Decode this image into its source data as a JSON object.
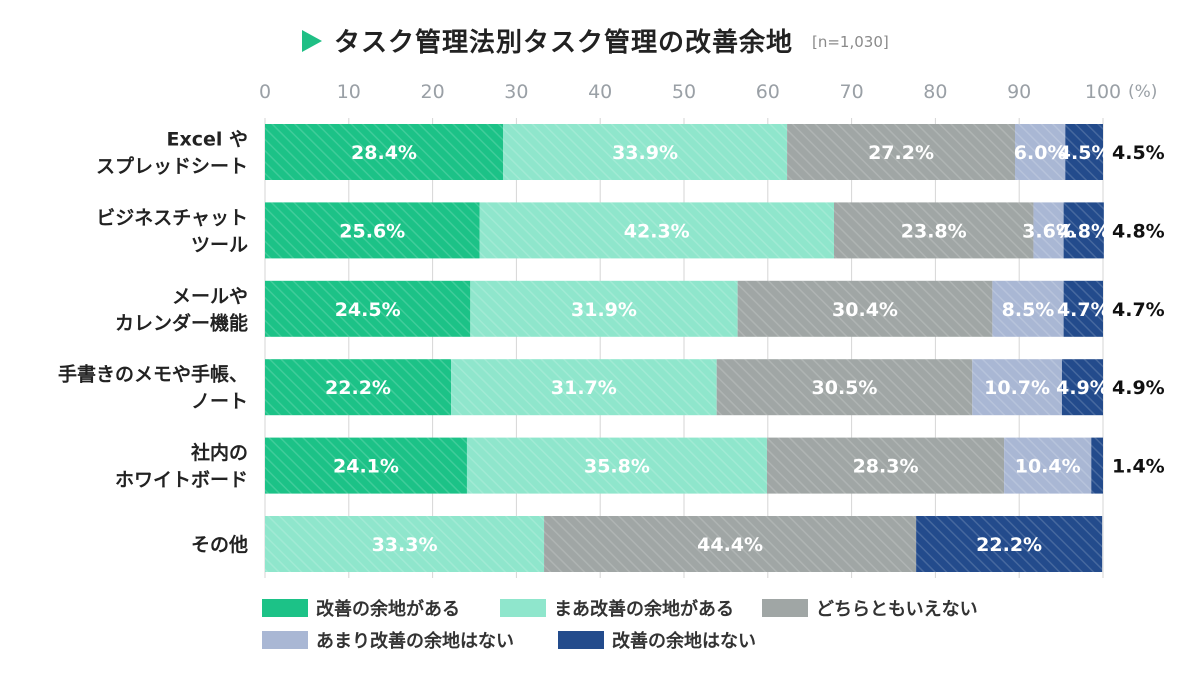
{
  "chart_data": {
    "type": "bar",
    "orientation": "horizontal",
    "stacked": true,
    "title": "タスク管理法別タスク管理の改善余地",
    "subtitle": "[n=1,030]",
    "xlim": [
      0,
      100
    ],
    "xticks": [
      0,
      10,
      20,
      30,
      40,
      50,
      60,
      70,
      80,
      90,
      100
    ],
    "x_unit": "(%)",
    "categories": [
      [
        "Excel や",
        "スプレッドシート"
      ],
      [
        "ビジネスチャット",
        "ツール"
      ],
      [
        "メールや",
        "カレンダー機能"
      ],
      [
        "手書きのメモや手帳、",
        "ノート"
      ],
      [
        "社内の",
        "ホワイトボード"
      ],
      [
        "その他"
      ]
    ],
    "series": [
      {
        "name": "改善の余地がある",
        "color": "#1cc287",
        "values": [
          28.4,
          25.6,
          24.5,
          22.2,
          24.1,
          0
        ]
      },
      {
        "name": "まあ改善の余地がある",
        "color": "#8fe6cc",
        "values": [
          33.9,
          42.3,
          31.9,
          31.7,
          35.8,
          33.3
        ]
      },
      {
        "name": "どちらともいえない",
        "color": "#a0a6a5",
        "values": [
          27.2,
          23.8,
          30.4,
          30.5,
          28.3,
          44.4
        ]
      },
      {
        "name": "あまり改善の余地はない",
        "color": "#a9b7d4",
        "values": [
          6.0,
          3.6,
          8.5,
          10.7,
          10.4,
          0
        ]
      },
      {
        "name": "改善の余地はない",
        "color": "#234b8c",
        "values": [
          4.5,
          4.8,
          4.7,
          4.9,
          1.4,
          22.2
        ]
      }
    ],
    "outside_labels": [
      "4.5%",
      "4.8%",
      "4.7%",
      "4.9%",
      "1.4%",
      ""
    ]
  }
}
